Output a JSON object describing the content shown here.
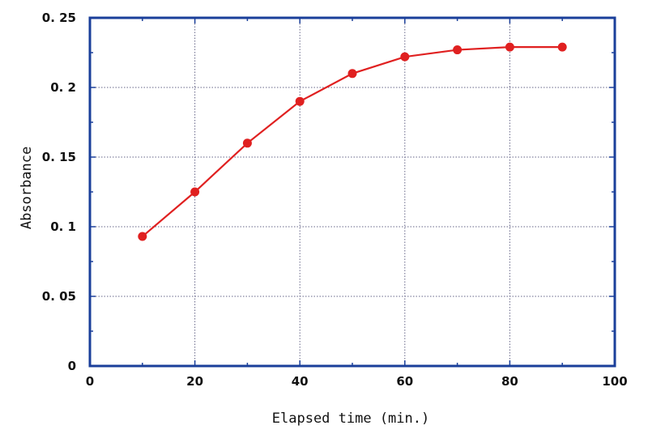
{
  "chart_data": {
    "type": "line",
    "title": "",
    "xlabel": "Elapsed time (min.)",
    "ylabel": "Absorbance",
    "xlim": [
      0,
      100
    ],
    "ylim": [
      0,
      0.25
    ],
    "x_ticks": [
      0,
      20,
      40,
      60,
      80,
      100
    ],
    "x_tick_labels": [
      "0",
      "20",
      "40",
      "60",
      "80",
      "100"
    ],
    "y_ticks": [
      0,
      0.05,
      0.1,
      0.15,
      0.2,
      0.25
    ],
    "y_tick_labels": [
      "0",
      "0. 05",
      "0. 1",
      "0. 15",
      "0. 2",
      "0. 25"
    ],
    "x_gridlines": [
      20,
      40,
      60,
      80
    ],
    "y_gridlines": [
      0.05,
      0.1,
      0.15,
      0.2
    ],
    "grid": true,
    "series": [
      {
        "color": "#e02020",
        "x": [
          10,
          20,
          30,
          40,
          50,
          60,
          70,
          80,
          90
        ],
        "y": [
          0.093,
          0.125,
          0.16,
          0.19,
          0.21,
          0.222,
          0.227,
          0.229,
          0.229
        ]
      }
    ],
    "frame_color": "#1a3f9a",
    "grid_color": "#666688"
  }
}
